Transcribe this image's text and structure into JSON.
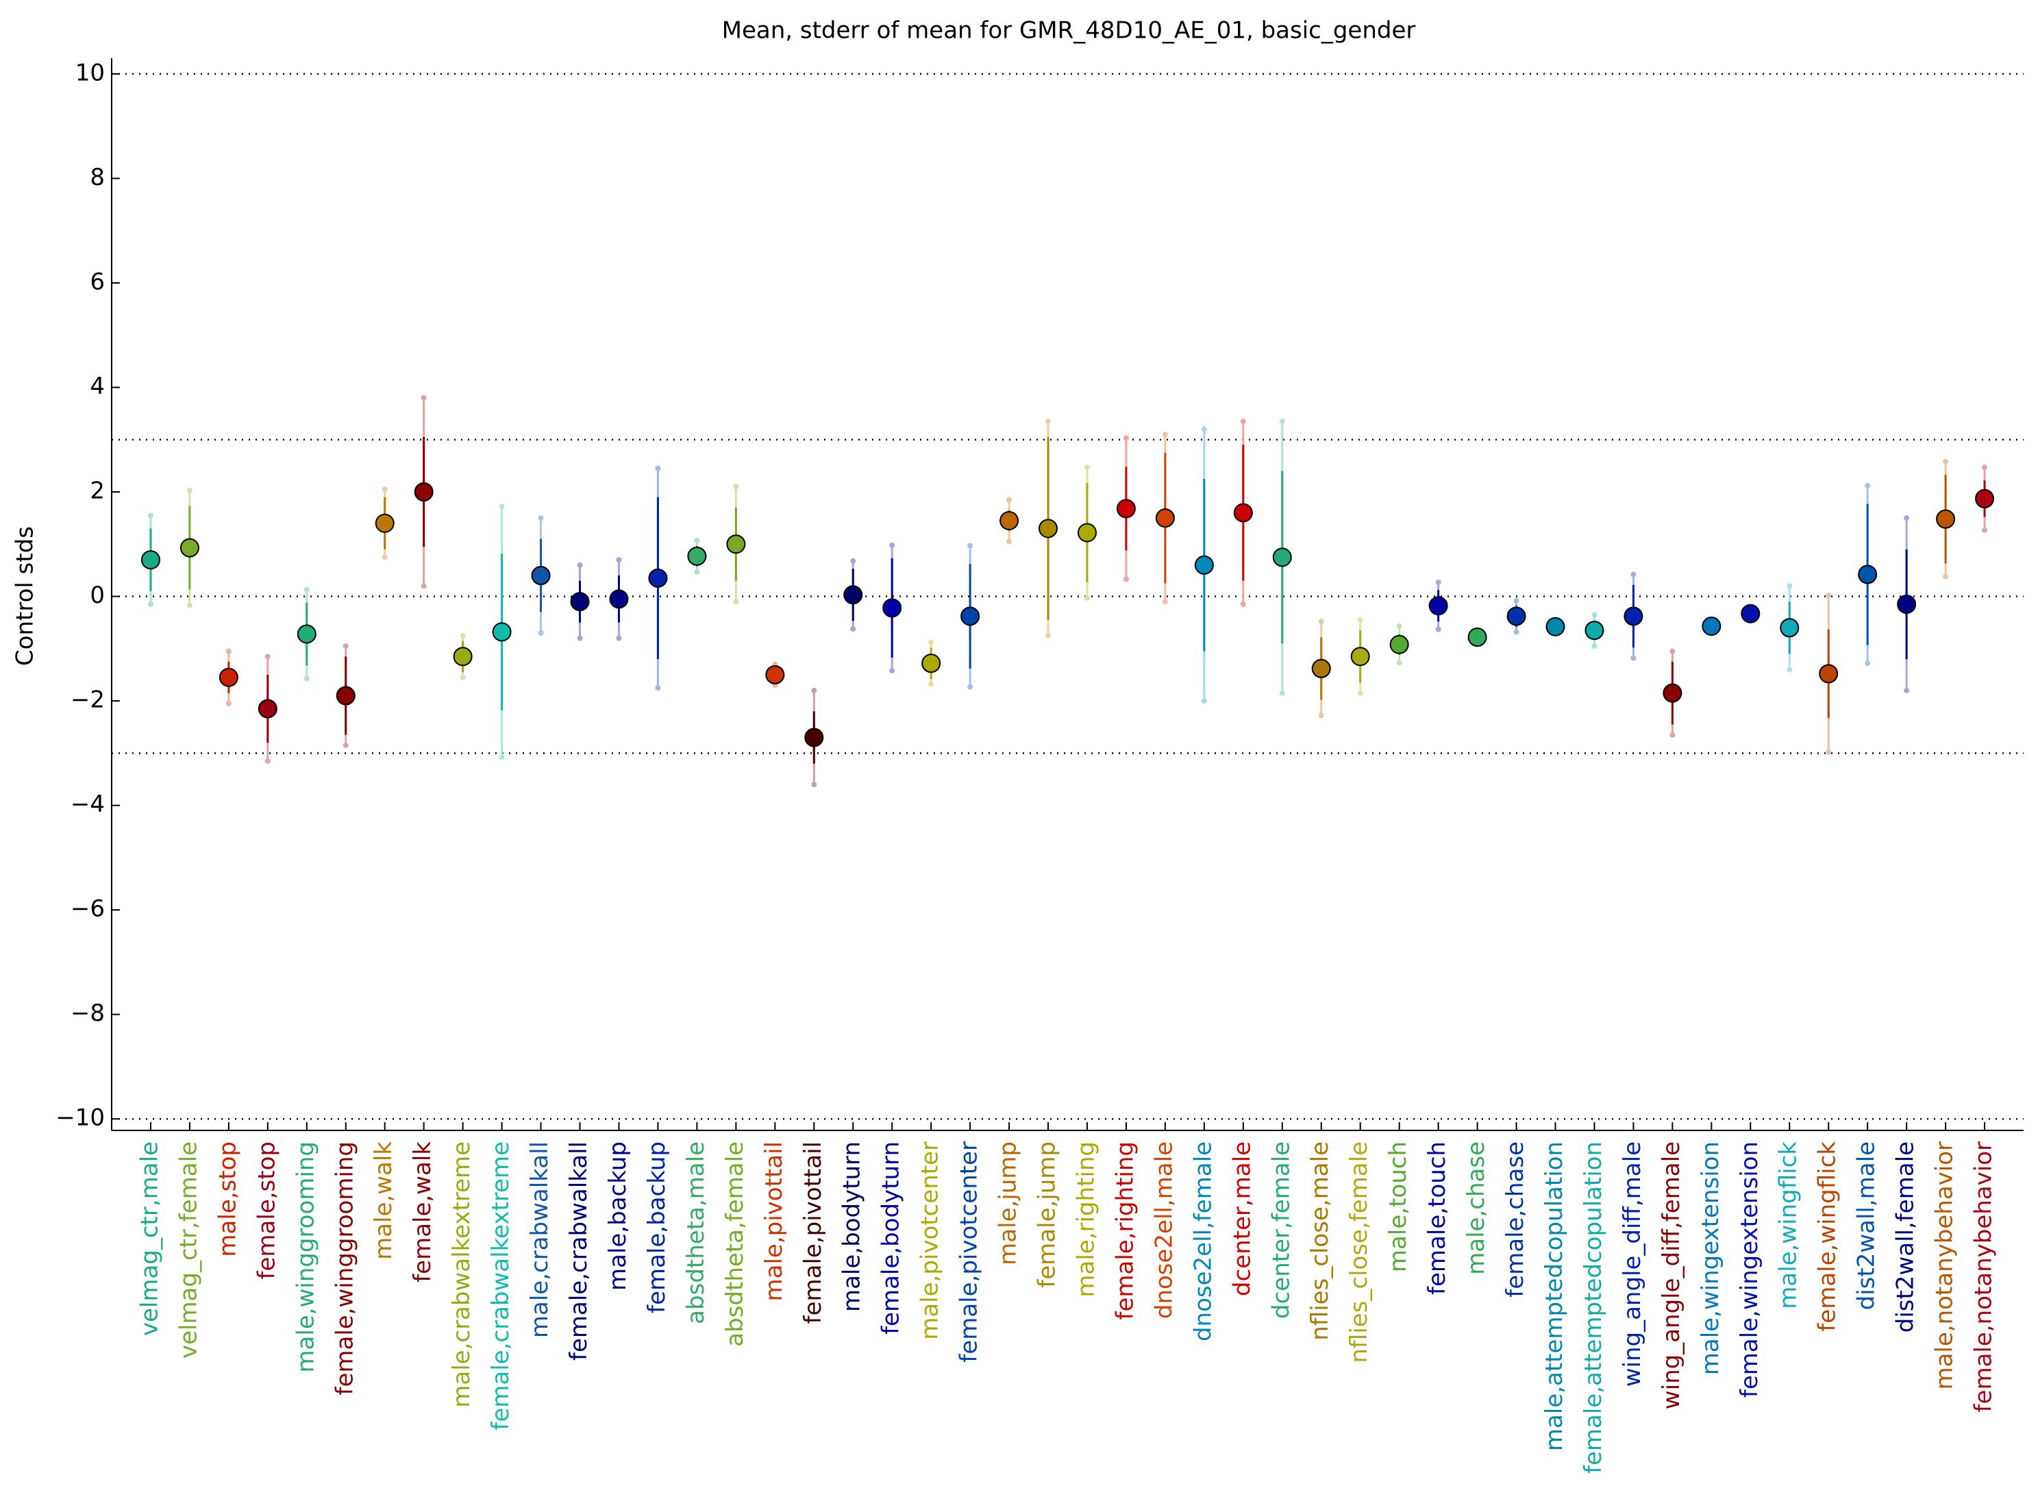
{
  "chart_data": {
    "type": "errorbar",
    "title": "Mean, stderr of mean for GMR_48D10_AE_01, basic_gender",
    "y_label": "Control stds",
    "categories": [
      "velmag_ctr,male",
      "velmag_ctr,female",
      "male,stop",
      "female,stop",
      "male,winggrooming",
      "female,winggrooming",
      "male,walk",
      "female,walk",
      "male,crabwalkextreme",
      "female,crabwalkextreme",
      "male,crabwalkall",
      "female,crabwalkall",
      "male,backup",
      "female,backup",
      "absdtheta,male",
      "absdtheta,female",
      "male,pivottail",
      "female,pivottail",
      "male,bodyturn",
      "female,bodyturn",
      "male,pivotcenter",
      "female,pivotcenter",
      "male,jump",
      "female,jump",
      "male,righting",
      "female,righting",
      "dnose2ell,male",
      "dnose2ell,female",
      "dcenter,male",
      "dcenter,female",
      "nflies_close,male",
      "nflies_close,female",
      "male,touch",
      "female,touch",
      "male,chase",
      "female,chase",
      "male,attemptedcopulation",
      "female,attemptedcopulation",
      "wing_angle_diff,male",
      "wing_angle_diff,female",
      "male,wingextension",
      "female,wingextension",
      "male,wingflick",
      "female,wingflick",
      "dist2wall,male",
      "dist2wall,female",
      "male,notanybehavior",
      "female,notanybehavior"
    ],
    "values": [
      0.7,
      0.93,
      -1.55,
      -2.15,
      -0.72,
      -1.9,
      1.4,
      2.0,
      -1.15,
      -0.68,
      0.4,
      -0.1,
      -0.05,
      0.35,
      0.77,
      1.0,
      -1.5,
      -2.7,
      0.03,
      -0.22,
      -1.28,
      -0.38,
      1.45,
      1.3,
      1.22,
      1.68,
      1.5,
      0.6,
      1.6,
      0.75,
      -1.38,
      -1.15,
      -0.92,
      -0.18,
      -0.78,
      -0.38,
      -0.58,
      -0.65,
      -0.38,
      -1.85,
      -0.57,
      -0.33,
      -0.6,
      -1.48,
      0.42,
      -0.15,
      1.48,
      1.87
    ],
    "errors": [
      0.6,
      0.8,
      0.3,
      0.65,
      0.6,
      0.75,
      0.5,
      1.05,
      0.3,
      1.5,
      0.7,
      0.4,
      0.45,
      1.55,
      0.2,
      0.7,
      0.1,
      0.5,
      0.5,
      0.95,
      0.3,
      1.0,
      0.2,
      1.75,
      0.95,
      0.8,
      1.25,
      1.65,
      1.3,
      1.65,
      0.6,
      0.5,
      0.2,
      0.3,
      0.05,
      0.2,
      0.05,
      0.15,
      0.6,
      0.6,
      0.05,
      0.05,
      0.5,
      0.85,
      1.35,
      1.05,
      0.85,
      0.35
    ],
    "spreads": [
      0.85,
      1.1,
      0.5,
      1.0,
      0.85,
      0.95,
      0.65,
      1.8,
      0.4,
      2.4,
      1.1,
      0.7,
      0.75,
      2.1,
      0.3,
      1.1,
      0.2,
      0.9,
      0.65,
      1.2,
      0.4,
      1.35,
      0.4,
      2.05,
      1.25,
      1.35,
      1.6,
      2.6,
      1.75,
      2.6,
      0.9,
      0.7,
      0.35,
      0.45,
      0.1,
      0.3,
      0.1,
      0.3,
      0.8,
      0.8,
      0.1,
      0.1,
      0.8,
      1.5,
      1.7,
      1.65,
      1.1,
      0.6
    ],
    "colors": [
      "#1aaa8a",
      "#7aaa2a",
      "#cc2200",
      "#990011",
      "#22aa77",
      "#880000",
      "#bb7700",
      "#880000",
      "#99aa11",
      "#11bbaa",
      "#1155aa",
      "#000077",
      "#000088",
      "#0022aa",
      "#33aa66",
      "#77aa22",
      "#cc3300",
      "#440000",
      "#000066",
      "#0000aa",
      "#aaaa00",
      "#0044aa",
      "#bb6600",
      "#aa8800",
      "#aaaa00",
      "#cc0000",
      "#cc4400",
      "#0088bb",
      "#cc0000",
      "#22aa77",
      "#aa7700",
      "#aaaa11",
      "#55aa33",
      "#0000aa",
      "#33aa55",
      "#0033aa",
      "#0088aa",
      "#11aaaa",
      "#0022aa",
      "#880000",
      "#0077bb",
      "#0011aa",
      "#11aabb",
      "#bb4400",
      "#0055aa",
      "#000088",
      "#bb5500",
      "#aa0011"
    ],
    "ylim": [
      -10.22,
      10.3
    ],
    "yticks": [
      {
        "value": -10,
        "label": "−10"
      },
      {
        "value": -8,
        "label": "−8"
      },
      {
        "value": -6,
        "label": "−6"
      },
      {
        "value": -4,
        "label": "−4"
      },
      {
        "value": -2,
        "label": "−2"
      },
      0,
      2,
      4,
      6,
      8,
      10
    ],
    "hlines": [
      -10,
      -3,
      0,
      3,
      10
    ]
  }
}
